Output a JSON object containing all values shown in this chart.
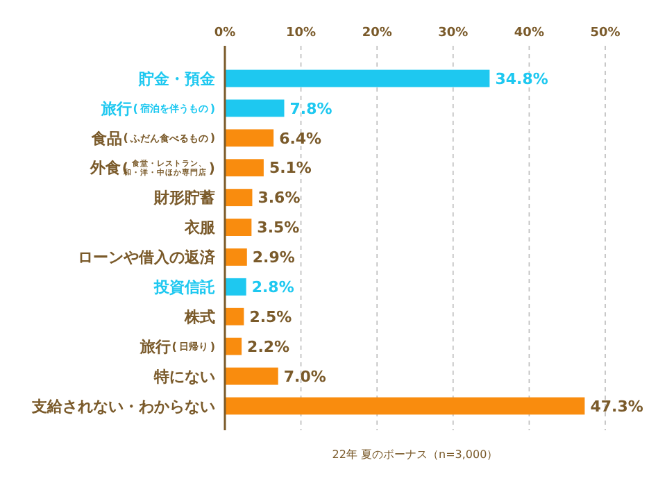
{
  "chart_data": {
    "type": "bar",
    "orientation": "horizontal",
    "xlabel": "22年 夏のボーナス（n=3,000）",
    "categories": [
      "貯金・預金",
      "旅行(宿泊を伴うもの)",
      "食品(ふだん食べるもの)",
      "外食(食堂・レストラン、和・洋・中ほか専門店)",
      "財形貯蓄",
      "衣服",
      "ローンや借入の返済",
      "投資信託",
      "株式",
      "旅行(日帰り)",
      "特にない",
      "支給されない・わからない"
    ],
    "values": [
      34.8,
      7.8,
      6.4,
      5.1,
      3.6,
      3.5,
      2.9,
      2.8,
      2.5,
      2.2,
      7.0,
      47.3
    ],
    "colors": [
      "#1ec8f0",
      "#1ec8f0",
      "#f98c0e",
      "#f98c0e",
      "#f98c0e",
      "#f98c0e",
      "#f98c0e",
      "#1ec8f0",
      "#f98c0e",
      "#f98c0e",
      "#f98c0e",
      "#f98c0e"
    ],
    "value_labels": [
      "34.8%",
      "7.8%",
      "6.4%",
      "5.1%",
      "3.6%",
      "3.5%",
      "2.9%",
      "2.8%",
      "2.5%",
      "2.2%",
      "7.0%",
      "47.3%"
    ],
    "xlim": [
      0,
      50
    ],
    "xticks": [
      {
        "value": 0,
        "label": "0%"
      },
      {
        "value": 10,
        "label": "10%"
      },
      {
        "value": 20,
        "label": "20%"
      },
      {
        "value": 30,
        "label": "30%"
      },
      {
        "value": 40,
        "label": "40%"
      },
      {
        "value": 50,
        "label": "50%"
      }
    ],
    "grid": "x"
  }
}
